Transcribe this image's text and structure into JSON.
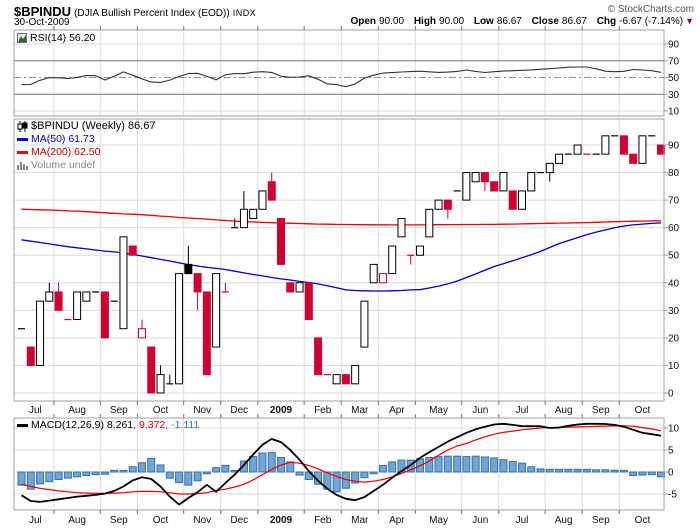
{
  "header": {
    "symbol": "$BPINDU",
    "name": "(DJIA Bullish Percent Index (EOD))",
    "exchange": "INDX",
    "copyright": "© StockCharts.com",
    "date": "30-Oct-2009",
    "quote": {
      "open": {
        "label": "Open",
        "value": "90.00"
      },
      "high": {
        "label": "High",
        "value": "90.00"
      },
      "low": {
        "label": "Low",
        "value": "86.67"
      },
      "close": {
        "label": "Close",
        "value": "86.67"
      },
      "chg": {
        "label": "Chg",
        "value": "-6.67 (-7.14%)"
      }
    },
    "chg_arrow": "▼",
    "chg_direction": "down"
  },
  "panels": {
    "rsi": {
      "label": "RSI(14) 56.20"
    },
    "price": {
      "symbol_label": "$BPINDU (Weekly) 86.67",
      "ma50_label": "MA(50) 61.73",
      "ma200_label": "MA(200) 62.50",
      "volume_label": "Volume undef"
    },
    "macd": {
      "label": "MACD(12,26,9) 8.261",
      "signal_label": ", 9.372",
      "hist_label": ", -1.111"
    }
  },
  "chart_data": {
    "type": "candlestick",
    "title": "$BPINDU (Weekly) 86.67",
    "timeframe": "weekly",
    "weeks": 70,
    "months": [
      {
        "label": "Jul",
        "weeks": 4
      },
      {
        "label": "Aug",
        "weeks": 5
      },
      {
        "label": "Sep",
        "weeks": 4
      },
      {
        "label": "Oct",
        "weeks": 5
      },
      {
        "label": "Nov",
        "weeks": 4
      },
      {
        "label": "Dec",
        "weeks": 4
      },
      {
        "label": "2009",
        "weeks": 5,
        "bold": true
      },
      {
        "label": "Feb",
        "weeks": 4
      },
      {
        "label": "Mar",
        "weeks": 4
      },
      {
        "label": "Apr",
        "weeks": 4
      },
      {
        "label": "May",
        "weeks": 5
      },
      {
        "label": "Jun",
        "weeks": 4
      },
      {
        "label": "Jul",
        "weeks": 5
      },
      {
        "label": "Aug",
        "weeks": 4
      },
      {
        "label": "Sep",
        "weeks": 4
      },
      {
        "label": "Oct",
        "weeks": 5
      }
    ],
    "price": {
      "ylim": [
        0,
        100
      ],
      "ticks": [
        90,
        80,
        70,
        60,
        50,
        40,
        30,
        20,
        10,
        0
      ],
      "candles": [
        [
          23.33,
          23.33,
          23.33,
          23.33,
          "w"
        ],
        [
          16.67,
          16.67,
          10,
          10,
          "r"
        ],
        [
          10,
          33.33,
          10,
          33.33,
          "w"
        ],
        [
          33.33,
          40,
          33.33,
          36.67,
          "w"
        ],
        [
          36.67,
          40,
          30,
          30,
          "r"
        ],
        [
          26.67,
          26.67,
          26.67,
          26.67,
          "r"
        ],
        [
          26.67,
          36.67,
          26.67,
          36.67,
          "w"
        ],
        [
          33.33,
          36.67,
          33.33,
          36.67,
          "w"
        ],
        [
          36.67,
          36.67,
          36.67,
          36.67,
          "w"
        ],
        [
          36.67,
          36.67,
          20,
          20,
          "r"
        ],
        [
          33.33,
          33.33,
          33.33,
          33.33,
          "w"
        ],
        [
          23.33,
          56.67,
          23.33,
          56.67,
          "w"
        ],
        [
          53.33,
          53.33,
          50,
          50,
          "r"
        ],
        [
          20,
          26.67,
          20,
          23.33,
          "rh"
        ],
        [
          16.67,
          16.67,
          0,
          0,
          "r"
        ],
        [
          0,
          10,
          0,
          6.67,
          "w"
        ],
        [
          3.33,
          6.67,
          3.33,
          3.33,
          "w"
        ],
        [
          3.33,
          43.33,
          3.33,
          43.33,
          "w"
        ],
        [
          46.67,
          53.33,
          43.33,
          43.33,
          "b"
        ],
        [
          43.33,
          43.33,
          30,
          36.67,
          "r"
        ],
        [
          36.67,
          36.67,
          6.67,
          6.67,
          "r"
        ],
        [
          16.67,
          43.33,
          16.67,
          43.33,
          "w"
        ],
        [
          36.67,
          40,
          36.67,
          36.67,
          "r"
        ],
        [
          60,
          63.33,
          60,
          60,
          "w"
        ],
        [
          60,
          73.33,
          60,
          66.67,
          "w"
        ],
        [
          63.33,
          66.67,
          63.33,
          66.67,
          "w"
        ],
        [
          66.67,
          73.33,
          66.67,
          73.33,
          "w"
        ],
        [
          76.67,
          80,
          70,
          70,
          "r"
        ],
        [
          63.33,
          63.33,
          46.67,
          46.67,
          "r"
        ],
        [
          40,
          40,
          36.67,
          36.67,
          "r"
        ],
        [
          36.67,
          40,
          36.67,
          40,
          "w"
        ],
        [
          40,
          40,
          26.67,
          26.67,
          "r"
        ],
        [
          20,
          20,
          6.67,
          6.67,
          "r"
        ],
        [
          6.67,
          6.67,
          6.67,
          6.67,
          "r"
        ],
        [
          3.33,
          6.67,
          3.33,
          6.67,
          "w"
        ],
        [
          6.67,
          6.67,
          3.33,
          3.33,
          "r"
        ],
        [
          3.33,
          10,
          3.33,
          10,
          "w"
        ],
        [
          16.67,
          33.33,
          16.67,
          33.33,
          "w"
        ],
        [
          40,
          46.67,
          40,
          46.67,
          "w"
        ],
        [
          40,
          43.33,
          40,
          43.33,
          "rh"
        ],
        [
          43.33,
          53.33,
          43.33,
          53.33,
          "w"
        ],
        [
          56.67,
          63.33,
          56.67,
          63.33,
          "w"
        ],
        [
          50,
          50,
          46.67,
          50,
          "r"
        ],
        [
          50,
          53.33,
          50,
          53.33,
          "w"
        ],
        [
          56.67,
          66.67,
          56.67,
          66.67,
          "w"
        ],
        [
          66.67,
          70,
          66.67,
          70,
          "w"
        ],
        [
          70,
          70,
          63.33,
          66.67,
          "r"
        ],
        [
          73.33,
          73.33,
          73.33,
          73.33,
          "w"
        ],
        [
          70,
          80,
          70,
          80,
          "w"
        ],
        [
          76.67,
          80,
          76.67,
          80,
          "w"
        ],
        [
          80,
          80,
          73.33,
          76.67,
          "r"
        ],
        [
          76.67,
          76.67,
          73.33,
          73.33,
          "r"
        ],
        [
          73.33,
          80,
          73.33,
          80,
          "w"
        ],
        [
          73.33,
          73.33,
          66.67,
          66.67,
          "r"
        ],
        [
          66.67,
          73.33,
          66.67,
          73.33,
          "w"
        ],
        [
          73.33,
          80,
          73.33,
          80,
          "w"
        ],
        [
          80,
          80,
          80,
          80,
          "w"
        ],
        [
          80,
          83.33,
          76.67,
          83.33,
          "w"
        ],
        [
          83.33,
          86.67,
          83.33,
          86.67,
          "w"
        ],
        [
          86.67,
          86.67,
          86.67,
          86.67,
          "w"
        ],
        [
          86.67,
          90,
          86.67,
          90,
          "w"
        ],
        [
          86.67,
          86.67,
          86.67,
          86.67,
          "r"
        ],
        [
          86.67,
          86.67,
          86.67,
          86.67,
          "w"
        ],
        [
          86.67,
          93.33,
          86.67,
          93.33,
          "w"
        ],
        [
          93.33,
          93.33,
          93.33,
          93.33,
          "w"
        ],
        [
          93.33,
          93.33,
          86.67,
          86.67,
          "r"
        ],
        [
          86.67,
          86.67,
          83.33,
          83.33,
          "r"
        ],
        [
          83.33,
          93.33,
          83.33,
          93.33,
          "w"
        ],
        [
          93.33,
          93.33,
          93.33,
          93.33,
          "w"
        ],
        [
          90,
          90,
          86.67,
          86.67,
          "r"
        ]
      ],
      "ma50": [
        55.6,
        55.1,
        54.6,
        54.1,
        53.6,
        53.1,
        52.7,
        52.3,
        51.9,
        51.5,
        51.2,
        50.8,
        50.3,
        49.7,
        49.1,
        48.5,
        47.9,
        47.2,
        46.6,
        46.1,
        45.6,
        45.2,
        44.8,
        44.2,
        43.6,
        43.0,
        42.5,
        41.9,
        41.4,
        41.0,
        40.5,
        40.1,
        39.6,
        38.9,
        38.2,
        37.4,
        37.2,
        37.1,
        37.0,
        37.0,
        37.1,
        37.2,
        37.4,
        37.5,
        38.1,
        38.8,
        39.6,
        40.6,
        41.9,
        43.2,
        44.6,
        45.9,
        46.9,
        48.0,
        49.1,
        50.2,
        51.4,
        52.8,
        54.2,
        55.3,
        56.4,
        57.5,
        58.4,
        59.2,
        60.0,
        60.6,
        61.0,
        61.3,
        61.55,
        61.73
      ],
      "ma200": [
        66.7,
        66.6,
        66.5,
        66.4,
        66.25,
        66.1,
        66.0,
        65.8,
        65.6,
        65.4,
        65.2,
        65.0,
        64.9,
        64.7,
        64.5,
        64.2,
        64.0,
        63.7,
        63.5,
        63.3,
        63.1,
        62.8,
        62.6,
        62.4,
        62.2,
        62.05,
        61.9,
        61.8,
        61.7,
        61.6,
        61.5,
        61.4,
        61.3,
        61.26,
        61.2,
        61.15,
        61.1,
        61.08,
        61.05,
        61.03,
        61.0,
        61.0,
        61.0,
        61.02,
        61.05,
        61.07,
        61.1,
        61.12,
        61.14,
        61.16,
        61.18,
        61.2,
        61.25,
        61.3,
        61.37,
        61.44,
        61.5,
        61.57,
        61.64,
        61.7,
        61.77,
        61.85,
        61.95,
        62.05,
        62.15,
        62.25,
        62.33,
        62.4,
        62.45,
        62.5
      ]
    },
    "rsi": {
      "value": 56.2,
      "ticks": [
        90,
        70,
        50,
        30,
        10
      ],
      "levels": {
        "upper": 70,
        "mid": 50,
        "lower": 30
      },
      "points": [
        41.5,
        41.6,
        46.7,
        49.9,
        49.6,
        48.8,
        50.1,
        52.5,
        52.1,
        47.0,
        51.6,
        56.7,
        52.8,
        48.5,
        44.5,
        44.1,
        46.9,
        51.2,
        54.6,
        55.0,
        51.3,
        47.1,
        53.2,
        54.8,
        54.5,
        56.3,
        56.9,
        56.1,
        51.4,
        50.2,
        50.6,
        52.0,
        47.8,
        42.3,
        41.5,
        39.0,
        42.2,
        49.3,
        52.8,
        55.2,
        55.9,
        56.6,
        57.1,
        57.5,
        56.8,
        56.1,
        56.5,
        57.3,
        58.9,
        57.3,
        56.0,
        56.9,
        57.6,
        58.1,
        58.6,
        59.1,
        59.8,
        60.5,
        61.4,
        62.3,
        62.5,
        62.5,
        60.4,
        57.5,
        56.9,
        57.4,
        59.6,
        59.0,
        58.1,
        56.2
      ]
    },
    "macd": {
      "values": [
        8.261,
        9.372,
        -1.111
      ],
      "ticks": [
        10,
        5,
        0,
        -5
      ],
      "macd": [
        -5.3,
        -6.6,
        -6.8,
        -6.5,
        -6.2,
        -5.9,
        -5.6,
        -5.4,
        -5.2,
        -4.9,
        -4.3,
        -3.3,
        -1.9,
        -1.2,
        -1.6,
        -3.3,
        -5.6,
        -7.4,
        -5.9,
        -4.6,
        -2.9,
        -4.5,
        -2.5,
        -0.6,
        1.6,
        4.0,
        6.2,
        7.5,
        6.8,
        5.0,
        2.8,
        0.2,
        -2.0,
        -3.8,
        -5.2,
        -6.1,
        -6.4,
        -5.7,
        -4.3,
        -2.9,
        -1.3,
        0.2,
        1.6,
        3.2,
        4.5,
        5.7,
        6.9,
        7.9,
        8.9,
        9.7,
        10.3,
        10.8,
        10.95,
        10.7,
        10.4,
        10.4,
        10.4,
        10.0,
        10.1,
        10.5,
        10.8,
        10.95,
        10.95,
        10.9,
        10.7,
        10.3,
        9.6,
        8.9,
        8.6,
        8.26
      ],
      "signal": [
        -2.8,
        -3.3,
        -3.7,
        -4.0,
        -4.3,
        -4.5,
        -4.7,
        -4.8,
        -4.85,
        -4.85,
        -4.8,
        -4.7,
        -4.5,
        -4.4,
        -4.4,
        -4.5,
        -4.7,
        -5.0,
        -5.0,
        -4.9,
        -4.7,
        -4.2,
        -3.9,
        -3.4,
        -2.8,
        -1.8,
        -0.6,
        0.6,
        1.6,
        2.2,
        2.0,
        1.5,
        0.7,
        -0.2,
        -1.0,
        -1.7,
        -2.1,
        -2.3,
        -2.1,
        -1.7,
        -1.1,
        -0.35,
        0.5,
        1.4,
        2.5,
        3.8,
        5.0,
        5.9,
        6.5,
        7.3,
        8.0,
        8.6,
        9.0,
        9.3,
        9.6,
        9.8,
        10.0,
        10.1,
        10.15,
        10.2,
        10.25,
        10.3,
        10.37,
        10.43,
        10.48,
        10.5,
        10.4,
        10.1,
        9.8,
        9.37
      ],
      "hist": [
        -3.0,
        -3.9,
        -2.7,
        -2.2,
        -1.7,
        -1.4,
        -1.1,
        -0.8,
        -0.6,
        -0.5,
        -0.35,
        -0.25,
        1.2,
        2.1,
        3.1,
        1.6,
        -1.4,
        -2.4,
        -3.0,
        -2.0,
        -0.4,
        1.0,
        1.5,
        0.3,
        2.5,
        3.5,
        4.3,
        4.4,
        3.3,
        2.3,
        -0.7,
        -1.7,
        -2.8,
        -3.9,
        -4.5,
        -3.7,
        -2.5,
        -1.3,
        -0.4,
        1.5,
        2.3,
        2.7,
        2.7,
        3.0,
        3.3,
        3.5,
        3.6,
        3.6,
        3.5,
        3.6,
        3.4,
        3.2,
        2.8,
        2.4,
        2.0,
        1.2,
        0.7,
        0.6,
        0.6,
        0.6,
        0.6,
        0.6,
        0.5,
        0.5,
        0.4,
        -0.3,
        -0.8,
        -0.7,
        -0.6,
        -1.1
      ]
    },
    "colors": {
      "candle_up": "#ffffff",
      "candle_up_stroke": "#000000",
      "candle_down": "#cc0033",
      "candle_black": "#000000",
      "ma50": "#0000cc",
      "ma200": "#ee0000",
      "macd_line": "#000000",
      "signal_line": "#ee0000",
      "hist_fill": "#6ea6d5",
      "hist_stroke": "#3a6ea8",
      "rsi_line": "#333333",
      "grid": "#dcdcdc",
      "border": "#a0a0a0",
      "level": "#707070",
      "axis_text": "#111111"
    },
    "legend_position": "top-left",
    "grid": true
  }
}
